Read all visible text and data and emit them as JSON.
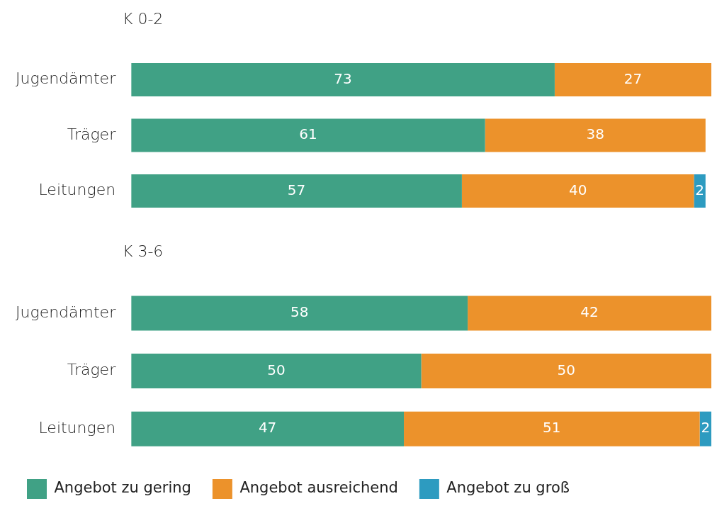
{
  "chart_data": [
    {
      "type": "bar",
      "title": "K 0-2",
      "orientation": "horizontal",
      "stacked": true,
      "categories": [
        "Jugendämter",
        "Träger",
        "Leitungen"
      ],
      "series": [
        {
          "color": "#40a185",
          "values": [
            73,
            61,
            57
          ]
        },
        {
          "color": "#ec922b",
          "values": [
            27,
            38,
            40
          ]
        },
        {
          "color": "#2d9bc0",
          "values": [
            null,
            null,
            2
          ]
        }
      ],
      "data_labels": true,
      "grid": false,
      "tick_labels": "y",
      "legend": false
    },
    {
      "type": "bar",
      "title": "K 3-6",
      "orientation": "horizontal",
      "stacked": true,
      "categories": [
        "Jugendämter",
        "Träger",
        "Leitungen"
      ],
      "series": [
        {
          "name": "Angebot zu gering",
          "color": "#40a185",
          "values": [
            58,
            50,
            47
          ]
        },
        {
          "name": "Angebot ausreichend",
          "color": "#ec922b",
          "values": [
            42,
            50,
            51
          ]
        },
        {
          "name": "Angebot zu groß",
          "color": "#2d9bc0",
          "values": [
            null,
            null,
            2
          ]
        }
      ],
      "data_labels": true,
      "grid": false,
      "tick_labels": "y",
      "legend": "bottom"
    }
  ]
}
